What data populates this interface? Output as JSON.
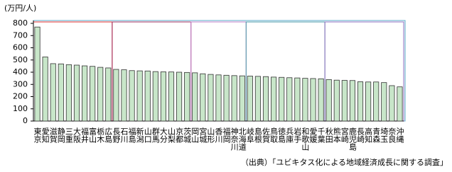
{
  "chart_data": {
    "type": "bar",
    "y_label": "(万円/人)",
    "source": "（出典）「ユビキタス化による地域経済成長に関する調査」",
    "categories": [
      "東京",
      "愛知",
      "滋賀",
      "静岡",
      "三重",
      "大阪",
      "福井",
      "富山",
      "栃木",
      "広島",
      "長野",
      "石川",
      "福島",
      "新潟",
      "山口",
      "群馬",
      "大分",
      "山梨",
      "京都",
      "茨城",
      "岡山",
      "宮城",
      "山形",
      "香川",
      "福岡",
      "神奈川",
      "北海道",
      "岐阜",
      "島根",
      "佐賀",
      "鳥取",
      "徳島",
      "兵庫",
      "岩手",
      "和歌山",
      "愛媛",
      "千葉",
      "秋田",
      "熊本",
      "宮崎",
      "鹿児島",
      "長崎",
      "高知",
      "青森",
      "埼玉",
      "奈良",
      "沖縄"
    ],
    "values": [
      770,
      525,
      470,
      468,
      462,
      458,
      452,
      448,
      440,
      435,
      423,
      420,
      413,
      411,
      410,
      405,
      403,
      402,
      400,
      398,
      395,
      387,
      382,
      378,
      375,
      372,
      370,
      368,
      366,
      364,
      360,
      358,
      355,
      353,
      350,
      348,
      346,
      340,
      335,
      333,
      332,
      322,
      320,
      320,
      315,
      290,
      280
    ],
    "color": "#c8e6c9",
    "ylim": [
      0,
      800
    ],
    "yticks": [
      0,
      100,
      200,
      300,
      400,
      500,
      600,
      700,
      800
    ]
  }
}
